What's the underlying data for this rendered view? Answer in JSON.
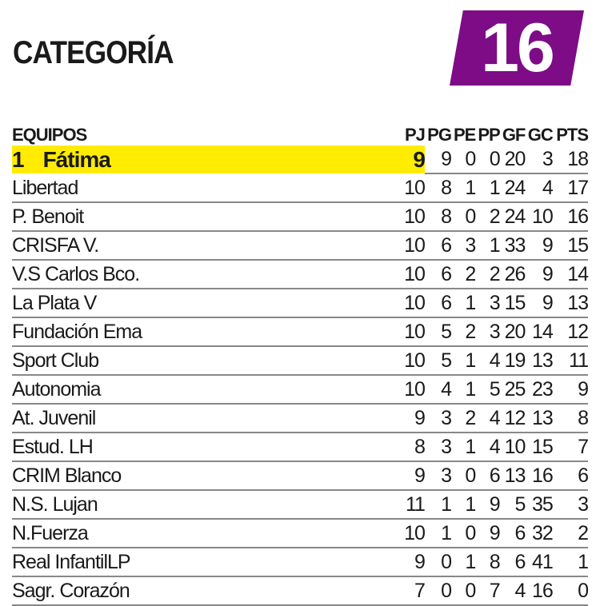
{
  "header": {
    "title": "CATEGORÍA",
    "category_number": "16",
    "badge_color": "#7d0c86"
  },
  "highlight_color": "#ffec00",
  "columns": {
    "team": "EQUIPOS",
    "pj": "PJ",
    "pg": "PG",
    "pe": "PE",
    "pp": "PP",
    "gf": "GF",
    "gc": "GC",
    "pts": "PTS"
  },
  "leader": {
    "position": "1",
    "team": "Fátima",
    "pj": "9",
    "pg": "9",
    "pe": "0",
    "pp": "0",
    "gf": "20",
    "gc": "3",
    "pts": "18"
  },
  "rows": [
    {
      "team": "Libertad",
      "pj": "10",
      "pg": "8",
      "pe": "1",
      "pp": "1",
      "gf": "24",
      "gc": "4",
      "pts": "17"
    },
    {
      "team": "P. Benoit",
      "pj": "10",
      "pg": "8",
      "pe": "0",
      "pp": "2",
      "gf": "24",
      "gc": "10",
      "pts": "16"
    },
    {
      "team": "CRISFA V.",
      "pj": "10",
      "pg": "6",
      "pe": "3",
      "pp": "1",
      "gf": "33",
      "gc": "9",
      "pts": "15"
    },
    {
      "team": "V.S Carlos Bco.",
      "pj": "10",
      "pg": "6",
      "pe": "2",
      "pp": "2",
      "gf": "26",
      "gc": "9",
      "pts": "14"
    },
    {
      "team": "La Plata V",
      "pj": "10",
      "pg": "6",
      "pe": "1",
      "pp": "3",
      "gf": "15",
      "gc": "9",
      "pts": "13"
    },
    {
      "team": "Fundación Ema",
      "pj": "10",
      "pg": "5",
      "pe": "2",
      "pp": "3",
      "gf": "20",
      "gc": "14",
      "pts": "12"
    },
    {
      "team": "Sport Club",
      "pj": "10",
      "pg": "5",
      "pe": "1",
      "pp": "4",
      "gf": "19",
      "gc": "13",
      "pts": "11"
    },
    {
      "team": "Autonomia",
      "pj": "10",
      "pg": "4",
      "pe": "1",
      "pp": "5",
      "gf": "25",
      "gc": "23",
      "pts": "9"
    },
    {
      "team": "At. Juvenil",
      "pj": "9",
      "pg": "3",
      "pe": "2",
      "pp": "4",
      "gf": "12",
      "gc": "13",
      "pts": "8"
    },
    {
      "team": "Estud. LH",
      "pj": "8",
      "pg": "3",
      "pe": "1",
      "pp": "4",
      "gf": "10",
      "gc": "15",
      "pts": "7"
    },
    {
      "team": "CRIM Blanco",
      "pj": "9",
      "pg": "3",
      "pe": "0",
      "pp": "6",
      "gf": "13",
      "gc": "16",
      "pts": "6"
    },
    {
      "team": "N.S. Lujan",
      "pj": "11",
      "pg": "1",
      "pe": "1",
      "pp": "9",
      "gf": "5",
      "gc": "35",
      "pts": "3"
    },
    {
      "team": "N.Fuerza",
      "pj": "10",
      "pg": "1",
      "pe": "0",
      "pp": "9",
      "gf": "6",
      "gc": "32",
      "pts": "2"
    },
    {
      "team": "Real InfantilLP",
      "pj": "9",
      "pg": "0",
      "pe": "1",
      "pp": "8",
      "gf": "6",
      "gc": "41",
      "pts": "1"
    },
    {
      "team": "Sagr. Corazón",
      "pj": "7",
      "pg": "0",
      "pe": "0",
      "pp": "7",
      "gf": "4",
      "gc": "16",
      "pts": "0"
    }
  ]
}
